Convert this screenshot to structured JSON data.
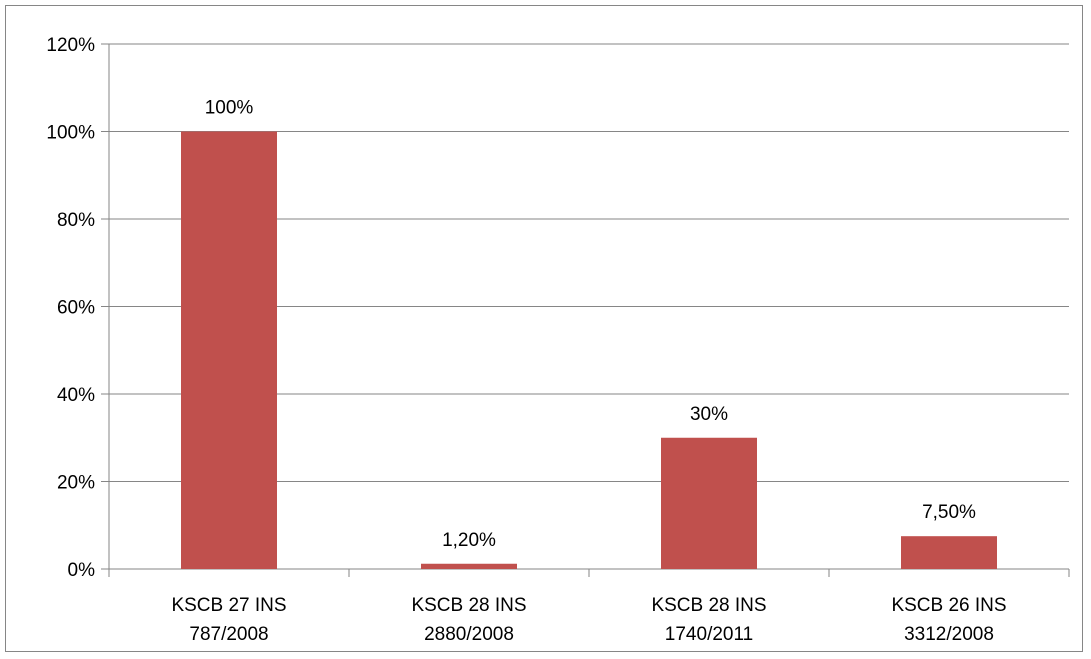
{
  "chart_data": {
    "type": "bar",
    "title": "",
    "xlabel": "",
    "ylabel": "",
    "categories": [
      [
        "KSCB 27 INS",
        "787/2008"
      ],
      [
        "KSCB 28 INS",
        "2880/2008"
      ],
      [
        "KSCB 28 INS",
        "1740/2011"
      ],
      [
        "KSCB 26 INS",
        "3312/2008"
      ]
    ],
    "values": [
      100,
      1.2,
      30,
      7.5
    ],
    "data_labels": [
      "100%",
      "1,20%",
      "30%",
      "7,50%"
    ],
    "ylim": [
      0,
      120
    ],
    "yticks": [
      0,
      20,
      40,
      60,
      80,
      100,
      120
    ],
    "ytick_labels": [
      "0%",
      "20%",
      "40%",
      "60%",
      "80%",
      "100%",
      "120%"
    ],
    "grid": true,
    "legend": "none",
    "colors": {
      "bar": "#c0504d",
      "grid": "#868686",
      "axis": "#868686",
      "border": "#868686"
    }
  }
}
